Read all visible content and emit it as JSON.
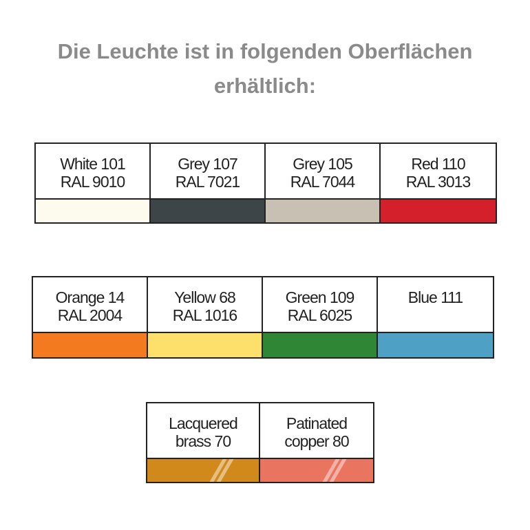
{
  "title": "Die Leuchte ist in folgenden Oberflächen erhältlich:",
  "rows": [
    {
      "swatches": [
        {
          "lines": [
            "White 101",
            "RAL 9010"
          ],
          "color": "#fcfbee"
        },
        {
          "lines": [
            "Grey 107",
            "RAL 7021"
          ],
          "color": "#3d4548"
        },
        {
          "lines": [
            "Grey 105",
            "RAL 7044"
          ],
          "color": "#c9c0b4"
        },
        {
          "lines": [
            "Red 110",
            "RAL 3013"
          ],
          "color": "#d3202b"
        }
      ]
    },
    {
      "swatches": [
        {
          "lines": [
            "Orange 14",
            "RAL 2004"
          ],
          "color": "#f47a20"
        },
        {
          "lines": [
            "Yellow 68",
            "RAL 1016"
          ],
          "color": "#fde06b"
        },
        {
          "lines": [
            "Green 109",
            "RAL 6025"
          ],
          "color": "#2f8634"
        },
        {
          "lines": [
            "Blue 111"
          ],
          "color": "#4fa0c5"
        }
      ]
    },
    {
      "swatches": [
        {
          "lines": [
            "Lacquered",
            "brass 70"
          ],
          "color": "#d1891b",
          "glossy": true
        },
        {
          "lines": [
            "Patinated",
            "copper 80"
          ],
          "color": "#e9745f",
          "glossy": true
        }
      ]
    }
  ]
}
